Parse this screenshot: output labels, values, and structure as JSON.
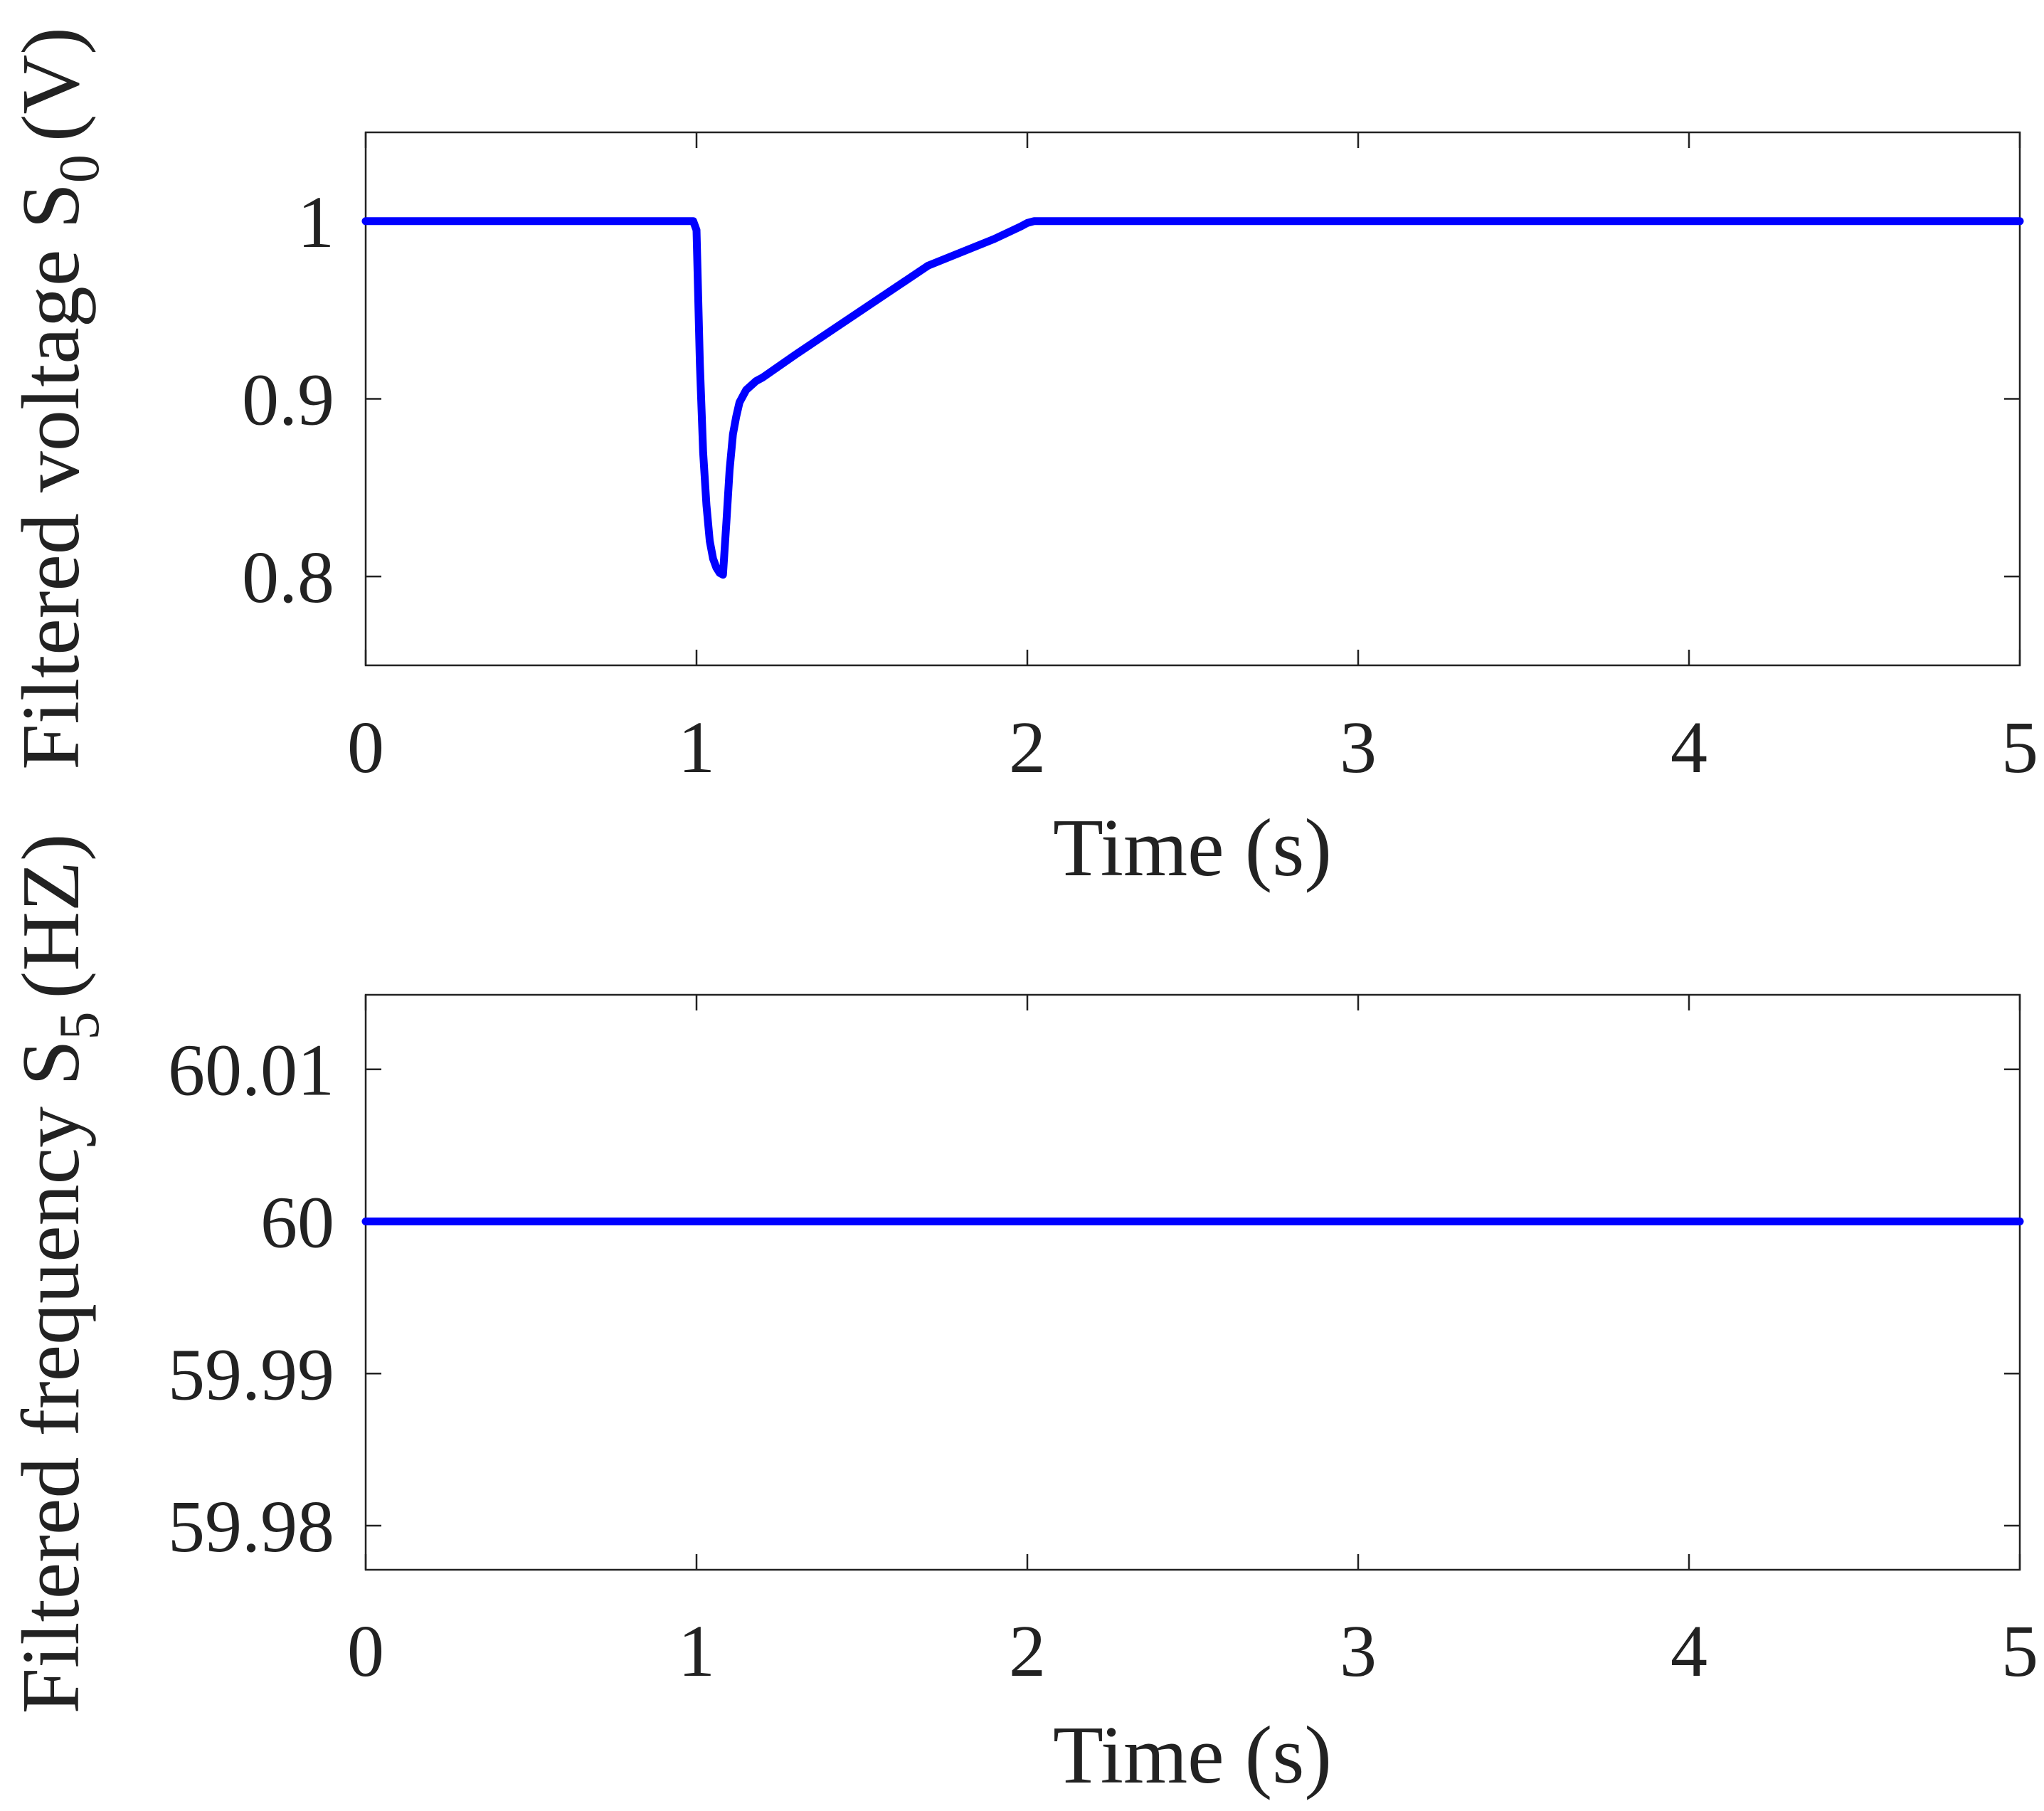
{
  "chart_data": [
    {
      "type": "line",
      "xlabel": "Time (s)",
      "ylabel": {
        "main": "Filtered voltage S",
        "subscript": "0",
        "unit": "(V)"
      },
      "xlim": [
        0,
        5
      ],
      "ylim": [
        0.75,
        1.05
      ],
      "xticks": [
        0,
        1,
        2,
        3,
        4,
        5
      ],
      "yticks": [
        0.8,
        0.9,
        1.0
      ],
      "xtick_labels": [
        "0",
        "1",
        "2",
        "3",
        "4",
        "5"
      ],
      "ytick_labels": [
        "0.8",
        "0.9",
        "1"
      ],
      "grid": false,
      "color": "#0000ff",
      "series": [
        {
          "x": [
            0,
            0.98,
            0.99,
            1.0,
            1.01,
            1.02,
            1.03,
            1.04,
            1.05,
            1.06,
            1.07,
            1.08,
            1.09,
            1.1,
            1.11,
            1.12,
            1.13,
            1.15,
            1.18,
            1.2,
            1.3,
            1.5,
            1.7,
            1.9,
            1.98,
            2.0,
            2.02,
            2.05,
            3,
            4,
            5
          ],
          "y": [
            1.0,
            1.0,
            1.0,
            0.995,
            0.92,
            0.87,
            0.84,
            0.82,
            0.81,
            0.805,
            0.802,
            0.801,
            0.83,
            0.86,
            0.88,
            0.89,
            0.898,
            0.905,
            0.91,
            0.912,
            0.925,
            0.95,
            0.975,
            0.99,
            0.997,
            0.999,
            1.0,
            1.0,
            1.0,
            1.0,
            1.0
          ]
        }
      ]
    },
    {
      "type": "line",
      "xlabel": "Time (s)",
      "ylabel": {
        "main": "Filtered frequency S",
        "subscript": "5",
        "unit": "(HZ)"
      },
      "xlim": [
        0,
        5
      ],
      "ylim": [
        59.9771,
        60.0149
      ],
      "xticks": [
        0,
        1,
        2,
        3,
        4,
        5
      ],
      "yticks": [
        59.98,
        59.99,
        60,
        60.01
      ],
      "xtick_labels": [
        "0",
        "1",
        "2",
        "3",
        "4",
        "5"
      ],
      "ytick_labels": [
        "59.98",
        "59.99",
        "60",
        "60.01"
      ],
      "grid": false,
      "color": "#0000ff",
      "series": [
        {
          "x": [
            0,
            5
          ],
          "y": [
            60,
            60
          ]
        }
      ]
    }
  ]
}
